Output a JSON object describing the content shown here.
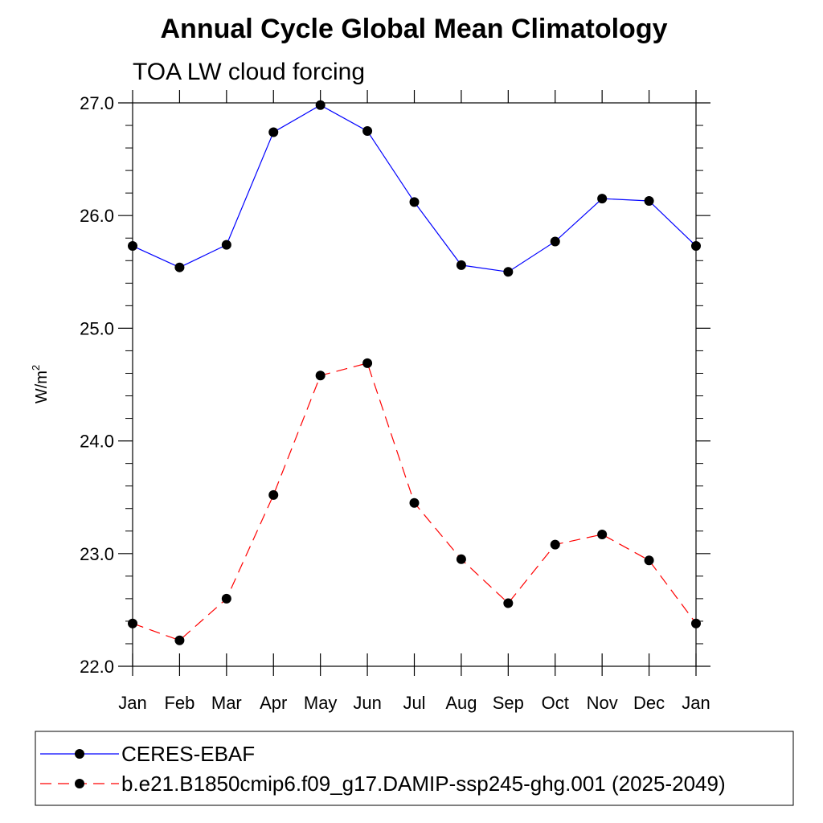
{
  "chart_data": {
    "type": "line",
    "title": "Annual Cycle Global Mean Climatology",
    "subtitle": "TOA LW cloud forcing",
    "ylabel": "W/m",
    "ylabel_sup": "2",
    "categories": [
      "Jan",
      "Feb",
      "Mar",
      "Apr",
      "May",
      "Jun",
      "Jul",
      "Aug",
      "Sep",
      "Oct",
      "Nov",
      "Dec",
      "Jan"
    ],
    "ylim": [
      22.0,
      27.0
    ],
    "yticks": [
      22.0,
      23.0,
      24.0,
      25.0,
      26.0,
      27.0
    ],
    "ytick_labels": [
      "22.0",
      "23.0",
      "24.0",
      "25.0",
      "26.0",
      "27.0"
    ],
    "grid": false,
    "legend_position": "bottom",
    "series": [
      {
        "name": "CERES-EBAF",
        "color": "#0000ff",
        "style": "solid",
        "values": [
          25.73,
          25.54,
          25.74,
          26.74,
          26.98,
          26.75,
          26.12,
          25.56,
          25.5,
          25.77,
          26.15,
          26.13,
          25.73
        ]
      },
      {
        "name": "b.e21.B1850cmip6.f09_g17.DAMIP-ssp245-ghg.001 (2025-2049)",
        "color": "#ff0000",
        "style": "dashed",
        "values": [
          22.38,
          22.23,
          22.6,
          23.52,
          24.58,
          24.69,
          23.45,
          22.95,
          22.56,
          23.08,
          23.17,
          22.94,
          22.38
        ]
      }
    ]
  }
}
